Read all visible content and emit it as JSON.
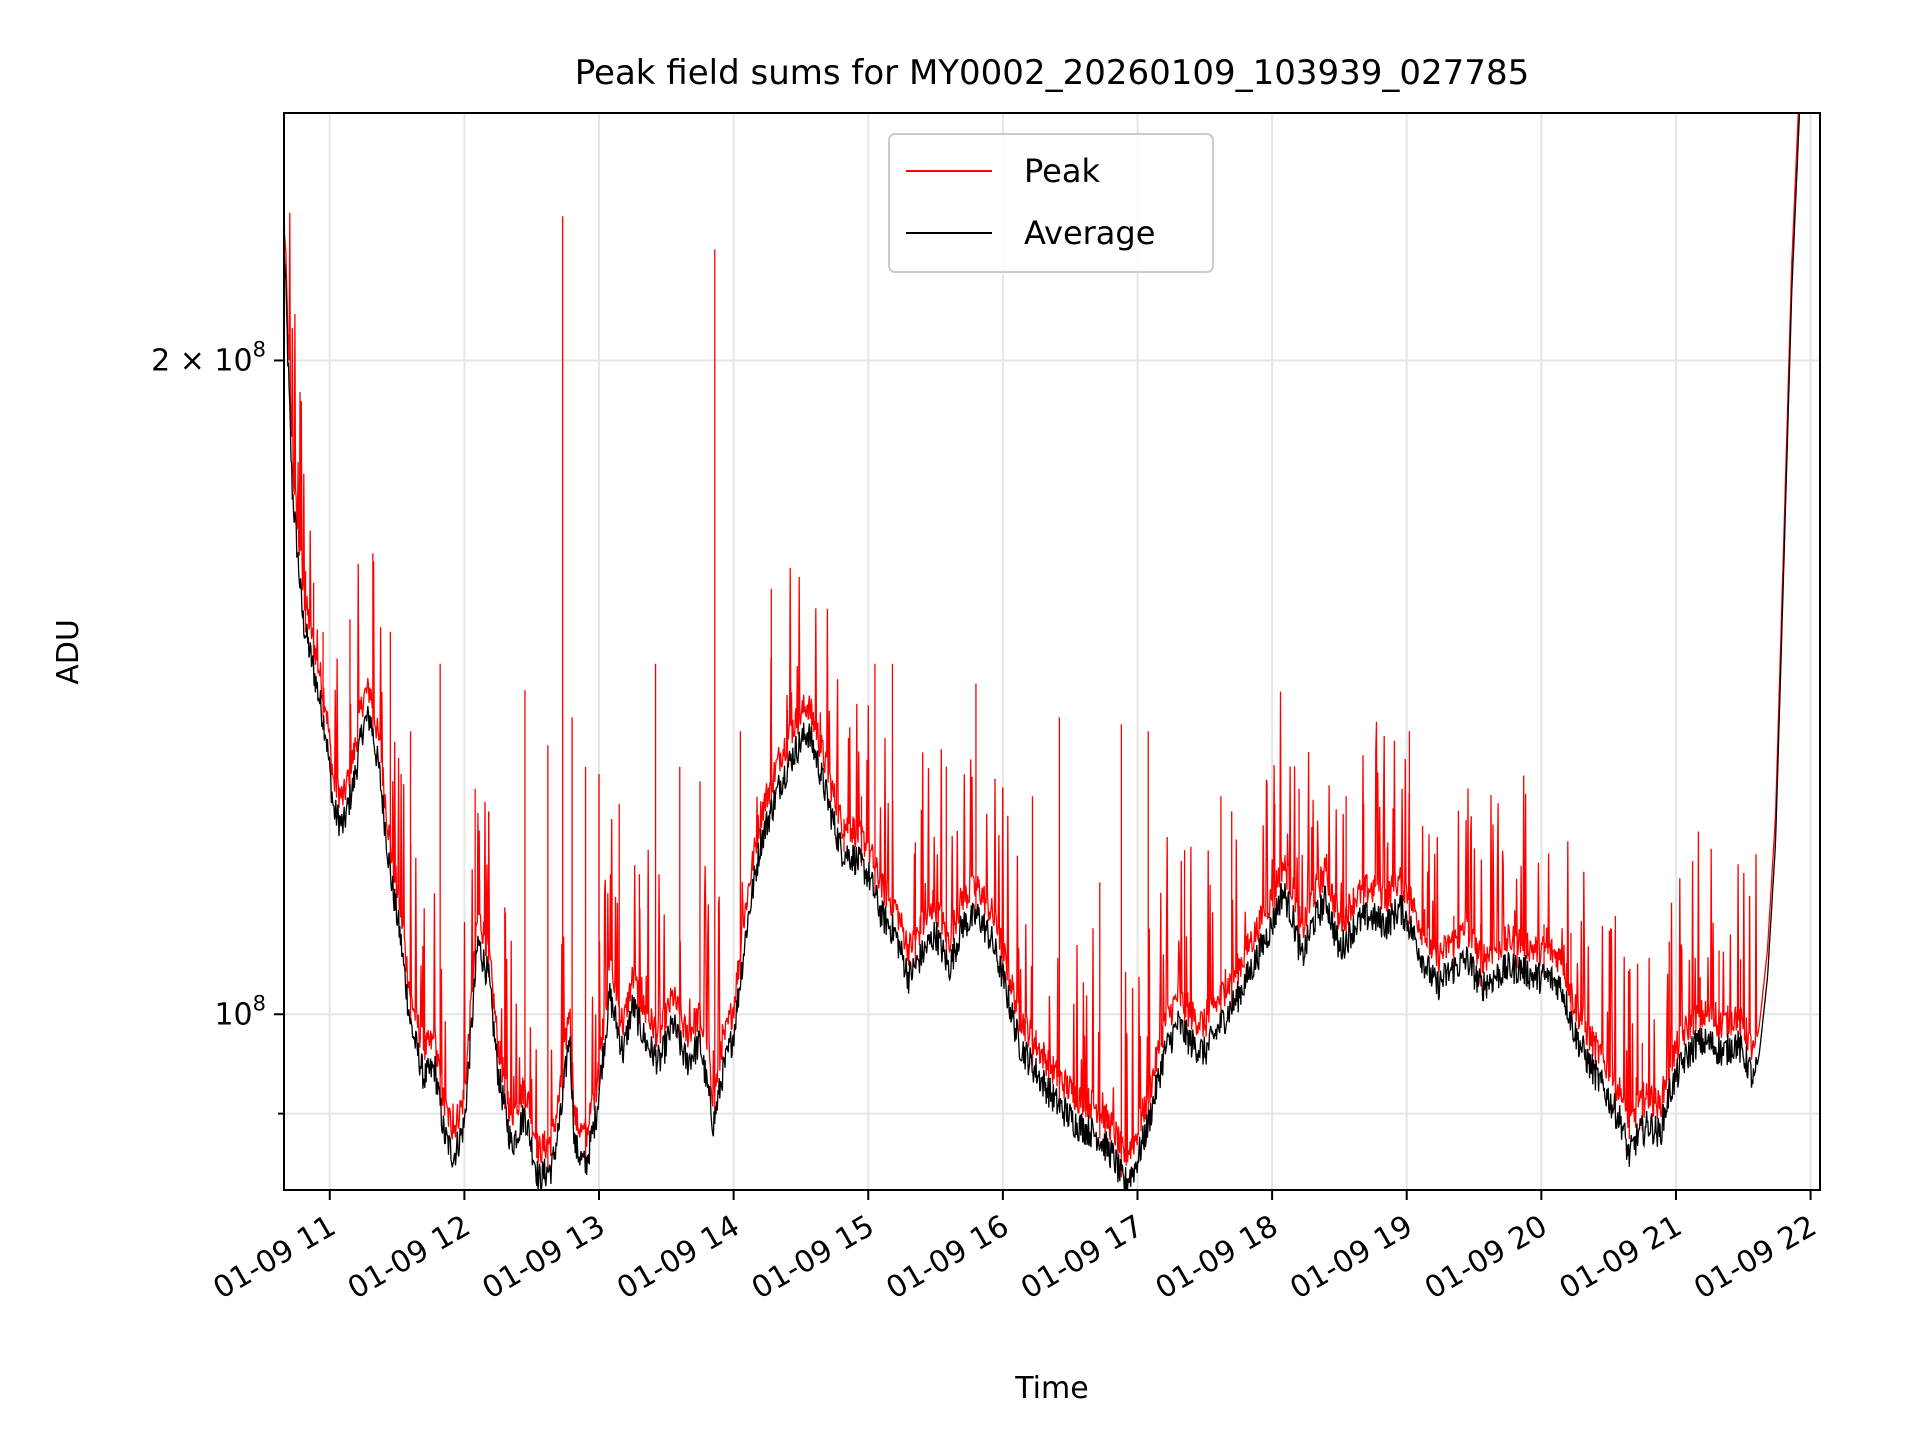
{
  "chart_data": {
    "type": "line",
    "title": "Peak field sums for MY0002_20260109_103939_027785",
    "xlabel": "Time",
    "ylabel": "ADU",
    "yscale": "log",
    "grid": true,
    "legend_position": "upper center",
    "xlim": [
      10.66,
      22.07
    ],
    "ylim": [
      83000000,
      260000000
    ],
    "x_ticks": [
      {
        "value": 11,
        "label": "01-09 11"
      },
      {
        "value": 12,
        "label": "01-09 12"
      },
      {
        "value": 13,
        "label": "01-09 13"
      },
      {
        "value": 14,
        "label": "01-09 14"
      },
      {
        "value": 15,
        "label": "01-09 15"
      },
      {
        "value": 16,
        "label": "01-09 16"
      },
      {
        "value": 17,
        "label": "01-09 17"
      },
      {
        "value": 18,
        "label": "01-09 18"
      },
      {
        "value": 19,
        "label": "01-09 19"
      },
      {
        "value": 20,
        "label": "01-09 20"
      },
      {
        "value": 21,
        "label": "01-09 21"
      },
      {
        "value": 22,
        "label": "01-09 22"
      }
    ],
    "y_ticks": [
      {
        "value": 100000000,
        "label_base": "10",
        "label_exp": "8",
        "label_mult": ""
      },
      {
        "value": 200000000,
        "label_base": "10",
        "label_exp": "8",
        "label_mult": "2 × "
      }
    ],
    "y_minor_ticks": [
      90000000
    ],
    "series": [
      {
        "name": "Average",
        "color": "#000000",
        "points": [
          [
            10.66,
            228000000
          ],
          [
            10.72,
            175000000
          ],
          [
            10.8,
            152000000
          ],
          [
            10.9,
            142000000
          ],
          [
            10.97,
            135000000
          ],
          [
            11.03,
            124000000
          ],
          [
            11.1,
            122000000
          ],
          [
            11.18,
            128000000
          ],
          [
            11.25,
            136000000
          ],
          [
            11.3,
            137000000
          ],
          [
            11.37,
            129000000
          ],
          [
            11.45,
            116000000
          ],
          [
            11.52,
            109000000
          ],
          [
            11.6,
            99000000
          ],
          [
            11.7,
            93500000
          ],
          [
            11.78,
            94500000
          ],
          [
            11.85,
            88000000
          ],
          [
            11.92,
            86000000
          ],
          [
            12.0,
            89000000
          ],
          [
            12.1,
            108000000
          ],
          [
            12.18,
            104000000
          ],
          [
            12.25,
            94000000
          ],
          [
            12.35,
            87000000
          ],
          [
            12.45,
            90000000
          ],
          [
            12.55,
            84000000
          ],
          [
            12.65,
            85000000
          ],
          [
            12.72,
            90000000
          ],
          [
            12.78,
            98000000
          ],
          [
            12.82,
            87000000
          ],
          [
            12.9,
            85000000
          ],
          [
            12.98,
            90000000
          ],
          [
            13.08,
            102000000
          ],
          [
            13.18,
            96000000
          ],
          [
            13.25,
            101000000
          ],
          [
            13.35,
            97000000
          ],
          [
            13.45,
            95000000
          ],
          [
            13.55,
            99000000
          ],
          [
            13.65,
            95000000
          ],
          [
            13.75,
            97000000
          ],
          [
            13.85,
            89000000
          ],
          [
            13.92,
            94000000
          ],
          [
            14.0,
            98000000
          ],
          [
            14.1,
            110000000
          ],
          [
            14.2,
            120000000
          ],
          [
            14.35,
            128000000
          ],
          [
            14.45,
            132000000
          ],
          [
            14.55,
            135000000
          ],
          [
            14.62,
            131000000
          ],
          [
            14.72,
            124000000
          ],
          [
            14.8,
            119000000
          ],
          [
            14.9,
            118000000
          ],
          [
            15.0,
            116000000
          ],
          [
            15.1,
            111000000
          ],
          [
            15.2,
            109000000
          ],
          [
            15.3,
            104000000
          ],
          [
            15.38,
            106000000
          ],
          [
            15.5,
            109000000
          ],
          [
            15.6,
            105000000
          ],
          [
            15.7,
            110000000
          ],
          [
            15.82,
            111000000
          ],
          [
            15.92,
            108000000
          ],
          [
            16.0,
            104000000
          ],
          [
            16.12,
            97000000
          ],
          [
            16.25,
            94000000
          ],
          [
            16.4,
            91000000
          ],
          [
            16.55,
            89000000
          ],
          [
            16.7,
            88000000
          ],
          [
            16.82,
            86000000
          ],
          [
            16.9,
            83500000
          ],
          [
            16.98,
            85000000
          ],
          [
            17.08,
            89000000
          ],
          [
            17.2,
            96000000
          ],
          [
            17.3,
            99000000
          ],
          [
            17.4,
            97000000
          ],
          [
            17.5,
            96000000
          ],
          [
            17.62,
            99000000
          ],
          [
            17.75,
            102000000
          ],
          [
            17.88,
            106000000
          ],
          [
            18.0,
            110000000
          ],
          [
            18.08,
            114000000
          ],
          [
            18.15,
            111000000
          ],
          [
            18.22,
            106000000
          ],
          [
            18.3,
            110000000
          ],
          [
            18.4,
            113000000
          ],
          [
            18.5,
            107000000
          ],
          [
            18.62,
            110000000
          ],
          [
            18.72,
            111000000
          ],
          [
            18.85,
            110000000
          ],
          [
            18.95,
            112000000
          ],
          [
            19.02,
            110000000
          ],
          [
            19.12,
            106000000
          ],
          [
            19.22,
            103000000
          ],
          [
            19.35,
            105000000
          ],
          [
            19.45,
            106000000
          ],
          [
            19.55,
            103000000
          ],
          [
            19.65,
            104000000
          ],
          [
            19.75,
            105000000
          ],
          [
            19.85,
            105000000
          ],
          [
            19.95,
            104000000
          ],
          [
            20.05,
            104000000
          ],
          [
            20.15,
            103000000
          ],
          [
            20.25,
            98000000
          ],
          [
            20.35,
            95000000
          ],
          [
            20.48,
            92000000
          ],
          [
            20.6,
            89000000
          ],
          [
            20.65,
            86000000
          ],
          [
            20.72,
            88000000
          ],
          [
            20.8,
            89000000
          ],
          [
            20.88,
            88000000
          ],
          [
            20.95,
            92000000
          ],
          [
            21.05,
            95000000
          ],
          [
            21.15,
            97000000
          ],
          [
            21.25,
            97000000
          ],
          [
            21.35,
            96000000
          ],
          [
            21.45,
            97000000
          ],
          [
            21.53,
            95000000
          ],
          [
            21.58,
            93000000
          ],
          [
            21.62,
            96000000
          ],
          [
            21.68,
            104000000
          ],
          [
            21.74,
            120000000
          ],
          [
            21.8,
            160000000
          ],
          [
            21.86,
            215000000
          ],
          [
            21.92,
            262000000
          ]
        ]
      },
      {
        "name": "Peak",
        "color": "#ff0000",
        "offset": 1.03,
        "spikes": [
          [
            10.82,
            160000000
          ],
          [
            10.88,
            158000000
          ],
          [
            10.95,
            150000000
          ],
          [
            11.15,
            152000000
          ],
          [
            11.32,
            163000000
          ],
          [
            11.45,
            150000000
          ],
          [
            11.6,
            135000000
          ],
          [
            11.82,
            145000000
          ],
          [
            12.08,
            127000000
          ],
          [
            12.18,
            124000000
          ],
          [
            12.3,
            112000000
          ],
          [
            12.45,
            141000000
          ],
          [
            12.62,
            133000000
          ],
          [
            12.73,
            233000000
          ],
          [
            12.8,
            137000000
          ],
          [
            12.9,
            130000000
          ],
          [
            13.0,
            129000000
          ],
          [
            13.15,
            125000000
          ],
          [
            13.3,
            116000000
          ],
          [
            13.42,
            145000000
          ],
          [
            13.6,
            130000000
          ],
          [
            13.75,
            128000000
          ],
          [
            13.86,
            225000000
          ],
          [
            14.05,
            135000000
          ],
          [
            14.28,
            157000000
          ],
          [
            14.4,
            138000000
          ],
          [
            14.58,
            139000000
          ],
          [
            14.82,
            123000000
          ],
          [
            14.95,
            126000000
          ],
          [
            15.05,
            145000000
          ],
          [
            15.18,
            145000000
          ],
          [
            15.35,
            120000000
          ],
          [
            15.58,
            130000000
          ],
          [
            15.8,
            142000000
          ],
          [
            16.0,
            127000000
          ],
          [
            16.22,
            126000000
          ],
          [
            16.42,
            137000000
          ],
          [
            16.72,
            115000000
          ],
          [
            16.88,
            136000000
          ],
          [
            17.08,
            135000000
          ],
          [
            17.35,
            119000000
          ],
          [
            17.62,
            126000000
          ],
          [
            17.7,
            124000000
          ],
          [
            18.02,
            125000000
          ],
          [
            18.2,
            127000000
          ],
          [
            18.55,
            126000000
          ],
          [
            18.68,
            125000000
          ],
          [
            18.86,
            120000000
          ],
          [
            19.02,
            135000000
          ],
          [
            19.35,
            111000000
          ],
          [
            19.55,
            110000000
          ],
          [
            19.82,
            109000000
          ],
          [
            20.02,
            110000000
          ],
          [
            20.22,
            109000000
          ],
          [
            20.55,
            111000000
          ],
          [
            20.75,
            97000000
          ],
          [
            20.95,
            108000000
          ],
          [
            21.18,
            104000000
          ],
          [
            21.32,
            107000000
          ],
          [
            21.48,
            106000000
          ]
        ]
      }
    ],
    "legend": [
      {
        "label": "Peak",
        "color": "#ff0000"
      },
      {
        "label": "Average",
        "color": "#000000"
      }
    ]
  }
}
